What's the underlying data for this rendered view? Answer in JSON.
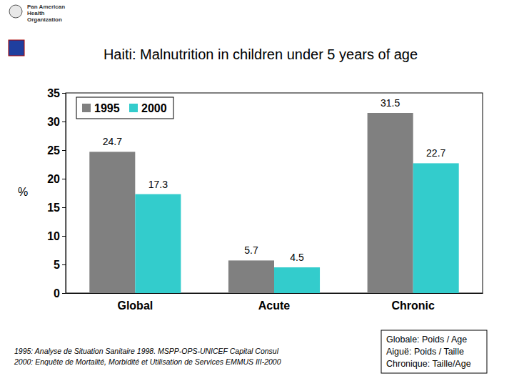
{
  "chart_data": {
    "type": "bar",
    "title": "Haiti: Malnutrition in children under 5 years of age",
    "y_label": "%",
    "organization": [
      "Pan American",
      "Health",
      "Organization"
    ],
    "categories": [
      "Global",
      "Acute",
      "Chronic"
    ],
    "series": [
      {
        "name": "1995",
        "color": "#808080",
        "values": [
          24.7,
          5.7,
          31.5
        ]
      },
      {
        "name": "2000",
        "color": "#33cccc",
        "values": [
          17.3,
          4.5,
          22.7
        ]
      }
    ],
    "ylim": [
      0,
      35
    ],
    "yticks": [
      0,
      5,
      10,
      15,
      20,
      25,
      30,
      35
    ],
    "grid": false,
    "legend": "top-left",
    "data_labels": true,
    "source": [
      "1995: Analyse de Situation Sanitaire 1998. MSPP-OPS-UNICEF Capital Consul",
      "2000: Enquête de Mortalité, Morbidité et Utilisation de Services EMMUS III-2000"
    ],
    "notes": [
      "Globale: Poids / Age",
      "Aiguë: Poids / Taille",
      "Chronique: Taille/Age"
    ]
  }
}
